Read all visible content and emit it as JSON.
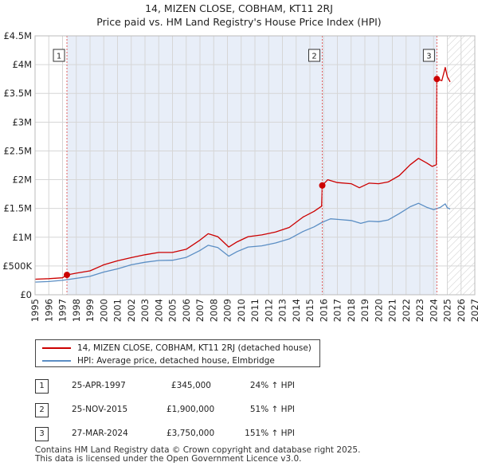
{
  "chart_data": {
    "type": "line",
    "title": "14, MIZEN CLOSE, COBHAM, KT11 2RJ",
    "subtitle": "Price paid vs. HM Land Registry's House Price Index (HPI)",
    "xlabel": "",
    "ylabel": "",
    "xlim": [
      1995,
      2027
    ],
    "ylim": [
      0,
      4500000
    ],
    "x_ticks": [
      "1995",
      "1996",
      "1997",
      "1998",
      "1999",
      "2000",
      "2001",
      "2002",
      "2003",
      "2004",
      "2005",
      "2006",
      "2007",
      "2008",
      "2009",
      "2010",
      "2011",
      "2012",
      "2013",
      "2014",
      "2015",
      "2016",
      "2017",
      "2018",
      "2019",
      "2020",
      "2021",
      "2022",
      "2023",
      "2024",
      "2025",
      "2026",
      "2027"
    ],
    "y_ticks": [
      {
        "value": 0,
        "label": "£0"
      },
      {
        "value": 500000,
        "label": "£500K"
      },
      {
        "value": 1000000,
        "label": "£1M"
      },
      {
        "value": 1500000,
        "label": "£1.5M"
      },
      {
        "value": 2000000,
        "label": "£2M"
      },
      {
        "value": 2500000,
        "label": "£2.5M"
      },
      {
        "value": 3000000,
        "label": "£3M"
      },
      {
        "value": 3500000,
        "label": "£3.5M"
      },
      {
        "value": 4000000,
        "label": "£4M"
      },
      {
        "value": 4500000,
        "label": "£4.5M"
      }
    ],
    "grid": true,
    "shaded_region": {
      "from": 1997.32,
      "to": 2024.24
    },
    "hatched_region": {
      "from": 2025.0,
      "to": 2027.0
    },
    "series": [
      {
        "name": "14, MIZEN CLOSE, COBHAM, KT11 2RJ (detached house)",
        "color": "#cc0000",
        "points": [
          [
            1995.0,
            270000
          ],
          [
            1996.0,
            280000
          ],
          [
            1997.0,
            295000
          ],
          [
            1997.32,
            345000
          ],
          [
            1998.0,
            375000
          ],
          [
            1999.0,
            415000
          ],
          [
            2000.0,
            520000
          ],
          [
            2001.0,
            590000
          ],
          [
            2002.0,
            645000
          ],
          [
            2003.0,
            695000
          ],
          [
            2004.0,
            735000
          ],
          [
            2005.0,
            735000
          ],
          [
            2006.0,
            790000
          ],
          [
            2007.0,
            950000
          ],
          [
            2007.6,
            1060000
          ],
          [
            2008.3,
            1010000
          ],
          [
            2009.1,
            830000
          ],
          [
            2009.7,
            920000
          ],
          [
            2010.5,
            1010000
          ],
          [
            2011.5,
            1040000
          ],
          [
            2012.5,
            1090000
          ],
          [
            2013.5,
            1170000
          ],
          [
            2014.5,
            1350000
          ],
          [
            2015.3,
            1450000
          ],
          [
            2015.85,
            1540000
          ],
          [
            2015.9,
            1900000
          ],
          [
            2016.3,
            2000000
          ],
          [
            2017.0,
            1950000
          ],
          [
            2018.0,
            1930000
          ],
          [
            2018.6,
            1860000
          ],
          [
            2019.3,
            1940000
          ],
          [
            2020.0,
            1930000
          ],
          [
            2020.7,
            1960000
          ],
          [
            2021.5,
            2070000
          ],
          [
            2022.3,
            2260000
          ],
          [
            2022.9,
            2370000
          ],
          [
            2023.5,
            2290000
          ],
          [
            2023.9,
            2230000
          ],
          [
            2024.2,
            2260000
          ],
          [
            2024.24,
            3750000
          ],
          [
            2024.6,
            3720000
          ],
          [
            2024.85,
            3950000
          ],
          [
            2025.0,
            3790000
          ],
          [
            2025.2,
            3700000
          ]
        ]
      },
      {
        "name": "HPI: Average price, detached house, Elmbridge",
        "color": "#5b8ec4",
        "points": [
          [
            1995.0,
            220000
          ],
          [
            1996.0,
            230000
          ],
          [
            1997.0,
            250000
          ],
          [
            1998.0,
            285000
          ],
          [
            1999.0,
            320000
          ],
          [
            2000.0,
            395000
          ],
          [
            2001.0,
            450000
          ],
          [
            2002.0,
            520000
          ],
          [
            2003.0,
            565000
          ],
          [
            2004.0,
            595000
          ],
          [
            2005.0,
            600000
          ],
          [
            2006.0,
            650000
          ],
          [
            2007.0,
            770000
          ],
          [
            2007.6,
            860000
          ],
          [
            2008.3,
            820000
          ],
          [
            2009.1,
            670000
          ],
          [
            2009.7,
            750000
          ],
          [
            2010.5,
            830000
          ],
          [
            2011.5,
            850000
          ],
          [
            2012.5,
            900000
          ],
          [
            2013.5,
            970000
          ],
          [
            2014.5,
            1100000
          ],
          [
            2015.3,
            1180000
          ],
          [
            2015.9,
            1260000
          ],
          [
            2016.5,
            1320000
          ],
          [
            2017.0,
            1310000
          ],
          [
            2018.0,
            1290000
          ],
          [
            2018.7,
            1240000
          ],
          [
            2019.3,
            1280000
          ],
          [
            2020.0,
            1270000
          ],
          [
            2020.7,
            1300000
          ],
          [
            2021.5,
            1410000
          ],
          [
            2022.3,
            1530000
          ],
          [
            2022.9,
            1590000
          ],
          [
            2023.5,
            1520000
          ],
          [
            2024.0,
            1480000
          ],
          [
            2024.5,
            1520000
          ],
          [
            2024.85,
            1580000
          ],
          [
            2025.0,
            1510000
          ],
          [
            2025.2,
            1490000
          ]
        ]
      }
    ],
    "markers": [
      {
        "label": "1",
        "x": 1997.32,
        "value": 345000
      },
      {
        "label": "2",
        "x": 2015.9,
        "value": 1900000
      },
      {
        "label": "3",
        "x": 2024.24,
        "value": 3750000
      }
    ]
  },
  "legend": {
    "property_label": "14, MIZEN CLOSE, COBHAM, KT11 2RJ (detached house)",
    "hpi_label": "HPI: Average price, detached house, Elmbridge"
  },
  "sales": [
    {
      "num": "1",
      "date": "25-APR-1997",
      "price": "£345,000",
      "hpi": "24% ↑ HPI"
    },
    {
      "num": "2",
      "date": "25-NOV-2015",
      "price": "£1,900,000",
      "hpi": "51% ↑ HPI"
    },
    {
      "num": "3",
      "date": "27-MAR-2024",
      "price": "£3,750,000",
      "hpi": "151% ↑ HPI"
    }
  ],
  "footer": {
    "line1": "Contains HM Land Registry data © Crown copyright and database right 2025.",
    "line2": "This data is licensed under the Open Government Licence v3.0."
  }
}
